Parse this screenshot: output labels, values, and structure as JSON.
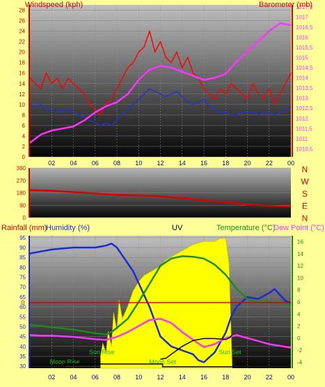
{
  "colors": {
    "background": "#ffff99",
    "wind": "#ff0000",
    "gust_avg": "#2233cc",
    "barometer": "#ff33ff",
    "direction": "#dd0000",
    "humidity": "#1a2bd6",
    "uv": "#ffff00",
    "temperature": "#1a8a1a",
    "dew_point": "#ff33ff",
    "rainfall": "#dd0000",
    "sun_moon": "#000000",
    "event_text": "#22bb22",
    "uv_edge": "#cccc00"
  },
  "chart_data": [
    {
      "type": "line",
      "title": "",
      "left_axis_label": "Windspeed (kph)",
      "right_axis_label": "Barometer (mb)",
      "x_ticks": [
        "02",
        "04",
        "06",
        "08",
        "10",
        "12",
        "14",
        "16",
        "18",
        "20",
        "22",
        "00"
      ],
      "x_range": [
        0,
        24
      ],
      "y_left_range": [
        0,
        29
      ],
      "y_left_ticks": [
        "0",
        "2",
        "4",
        "6",
        "8",
        "10",
        "12",
        "14",
        "16",
        "18",
        "20",
        "22",
        "24",
        "26",
        "28"
      ],
      "y_right_range": [
        1010.1,
        1017.6
      ],
      "y_right_ticks": [
        "1010,5",
        "1011",
        "1011,5",
        "1012",
        "1012,5",
        "1013",
        "1013,5",
        "1014",
        "1014,5",
        "1015",
        "1015,5",
        "1016",
        "1016,5",
        "1017",
        "1017,5"
      ],
      "series": [
        {
          "key": "wind",
          "x": [
            0,
            0.5,
            1,
            1.5,
            2,
            2.5,
            3,
            3.5,
            4,
            4.5,
            5,
            5.5,
            6,
            6.5,
            7,
            7.5,
            8,
            8.5,
            9,
            9.5,
            10,
            10.5,
            11,
            11.5,
            12,
            12.5,
            13,
            13.5,
            14,
            14.5,
            15,
            15.5,
            16,
            16.5,
            17,
            17.5,
            18,
            18.5,
            19,
            19.5,
            20,
            20.5,
            21,
            21.5,
            22,
            22.5,
            23,
            23.5,
            24
          ],
          "values": [
            15,
            14,
            13,
            16,
            14,
            15,
            13,
            15,
            14,
            13,
            12,
            10,
            9,
            8,
            10,
            11,
            13,
            15,
            17,
            18,
            20,
            21,
            24,
            20,
            22,
            19,
            18,
            20,
            17,
            19,
            16,
            15,
            13,
            12,
            11,
            13,
            12,
            14,
            13,
            12,
            11,
            14,
            12,
            11,
            13,
            10,
            12,
            14,
            16
          ]
        },
        {
          "key": "gust_avg",
          "x": [
            0,
            0.5,
            1,
            1.5,
            2,
            2.5,
            3,
            3.5,
            4,
            4.5,
            5,
            5.5,
            6,
            6.5,
            7,
            7.5,
            8,
            8.5,
            9,
            9.5,
            10,
            10.5,
            11,
            11.5,
            12,
            12.5,
            13,
            13.5,
            14,
            14.5,
            15,
            15.5,
            16,
            16.5,
            17,
            17.5,
            18,
            18.5,
            19,
            19.5,
            20,
            20.5,
            21,
            21.5,
            22,
            22.5,
            23,
            23.5,
            24
          ],
          "values": [
            10,
            9.5,
            10,
            9,
            9,
            8.5,
            9,
            9,
            8.5,
            8,
            7.5,
            7,
            6.5,
            6,
            6.5,
            6,
            7,
            8,
            9,
            10,
            11,
            12,
            13,
            12.5,
            12,
            11.5,
            12,
            12.5,
            11.5,
            10.5,
            10,
            10.5,
            11,
            9.5,
            9,
            8.5,
            8.5,
            8,
            8,
            8.5,
            8.5,
            8.5,
            8,
            8.5,
            8.5,
            8,
            8.5,
            9,
            9.5
          ]
        },
        {
          "key": "barometer",
          "axis": "right",
          "x": [
            0,
            1,
            2,
            3,
            4,
            5,
            6,
            7,
            8,
            9,
            10,
            11,
            12,
            13,
            14,
            15,
            16,
            17,
            18,
            19,
            20,
            21,
            22,
            23,
            24
          ],
          "values": [
            1010.8,
            1011.2,
            1011.4,
            1011.5,
            1011.6,
            1011.9,
            1012.3,
            1012.6,
            1012.8,
            1013.2,
            1013.9,
            1014.4,
            1014.6,
            1014.5,
            1014.3,
            1014.1,
            1013.9,
            1014.0,
            1014.2,
            1014.8,
            1015.3,
            1015.8,
            1016.3,
            1016.7,
            1016.6
          ]
        }
      ]
    },
    {
      "type": "line",
      "title": "",
      "y_ticks": [
        "0",
        "90",
        "180",
        "270",
        "360"
      ],
      "y_range": [
        0,
        360
      ],
      "direction_labels": [
        "N",
        "W",
        "S",
        "E",
        "N"
      ],
      "x_range": [
        0,
        24
      ],
      "series": [
        {
          "key": "direction",
          "x": [
            0,
            2,
            4,
            6,
            8,
            10,
            12,
            14,
            16,
            18,
            20,
            22,
            24
          ],
          "values": [
            200,
            195,
            185,
            175,
            165,
            160,
            155,
            140,
            125,
            110,
            95,
            85,
            80
          ]
        }
      ]
    },
    {
      "type": "line",
      "title": "",
      "labels": {
        "rainfall": "Rainfall (mm)",
        "humidity": "Humidity (%)",
        "uv": "UV",
        "temperature": "Temperature (°C)",
        "dew_point": "Dew Point (°C)"
      },
      "rain_marker": "0",
      "x_ticks": [
        "02",
        "04",
        "06",
        "08",
        "10",
        "12",
        "14",
        "16",
        "18",
        "20",
        "22",
        "00"
      ],
      "x_range": [
        0,
        24
      ],
      "y_left_range": [
        29,
        96
      ],
      "y_left_ticks": [
        "30",
        "35",
        "40",
        "45",
        "50",
        "55",
        "60",
        "65",
        "70",
        "75",
        "80",
        "85",
        "90",
        "95"
      ],
      "y_right_range": [
        -5,
        17
      ],
      "y_right_ticks": [
        "-4",
        "-2",
        "0",
        "2",
        "4",
        "6",
        "8",
        "10",
        "12",
        "14",
        "16"
      ],
      "events": [
        {
          "label": "Moon Rise",
          "x": 3.2
        },
        {
          "label": "Sun Rise",
          "x": 6.6
        },
        {
          "label": "Moon Set",
          "x": 12.2
        },
        {
          "label": "Sun Set",
          "x": 18.4
        }
      ],
      "series": [
        {
          "key": "humidity",
          "axis": "left",
          "x": [
            0,
            1,
            2,
            3,
            4,
            5,
            6,
            7,
            7.5,
            8,
            8.5,
            9,
            9.5,
            10,
            11,
            12,
            13,
            14,
            15,
            15.5,
            16,
            17,
            18,
            18.5,
            19,
            20,
            21,
            22,
            22.5,
            23,
            23.5,
            24
          ],
          "values": [
            87,
            88,
            89,
            89.5,
            90,
            90,
            90,
            91,
            92,
            90,
            86,
            82,
            78,
            72,
            60,
            45,
            40,
            38,
            36,
            33,
            32,
            37,
            47,
            55,
            60,
            65,
            64,
            67,
            69,
            66,
            63,
            62
          ]
        },
        {
          "key": "temperature",
          "axis": "right",
          "x": [
            0,
            1,
            2,
            3,
            4,
            5,
            6,
            7,
            7.5,
            8,
            9,
            10,
            11,
            12,
            13,
            14,
            15,
            16,
            17,
            18,
            19,
            20,
            21,
            22,
            23,
            24
          ],
          "values": [
            2.2,
            2,
            1.8,
            1.6,
            1.4,
            1.1,
            0.8,
            0.6,
            1,
            1.7,
            3.2,
            6,
            9,
            12,
            13.2,
            13.6,
            13.5,
            13.2,
            12.2,
            10.5,
            8.2,
            6.5,
            6,
            6,
            5.8,
            5.5
          ]
        },
        {
          "key": "dew_point",
          "axis": "right",
          "x": [
            0,
            1,
            2,
            3,
            4,
            5,
            6,
            7,
            8,
            9,
            10,
            11,
            12,
            13,
            14,
            15,
            16,
            17,
            18,
            19,
            20,
            21,
            22,
            23,
            24
          ],
          "values": [
            0.5,
            0.4,
            0.4,
            0.3,
            0.2,
            0,
            -0.2,
            -0.3,
            0.2,
            1,
            2,
            3,
            3.2,
            2.5,
            1,
            -0.3,
            -1.5,
            -1,
            0,
            0.5,
            0,
            -0.5,
            -1,
            -1.3,
            -1.6
          ]
        }
      ],
      "uv_index": {
        "x": [
          6.5,
          6.7,
          7,
          7.2,
          7.5,
          7.7,
          8,
          8.2,
          8.5,
          9,
          9.5,
          10,
          10.5,
          11,
          11.5,
          12,
          12.5,
          13,
          13.5,
          14,
          14.5,
          15,
          15.5,
          16,
          16.5,
          17,
          17.5,
          18,
          18.3,
          18.6
        ],
        "values": [
          0.4,
          0.8,
          0.5,
          1.2,
          0.7,
          1.8,
          1.2,
          2.2,
          1.6,
          2,
          2.5,
          2.8,
          3,
          3.1,
          3.2,
          3.3,
          3.5,
          3.6,
          3.7,
          3.8,
          3.9,
          4,
          4.05,
          4.1,
          4.1,
          4.1,
          4.2,
          4.2,
          3.4,
          0
        ]
      },
      "sun_elevation": {
        "x": [
          12,
          12.5,
          13,
          14,
          15,
          16,
          17,
          18,
          18.4,
          18.6
        ],
        "values": [
          33.5,
          34,
          36,
          40,
          43,
          44,
          44,
          43.5,
          44.5,
          46
        ]
      }
    }
  ]
}
